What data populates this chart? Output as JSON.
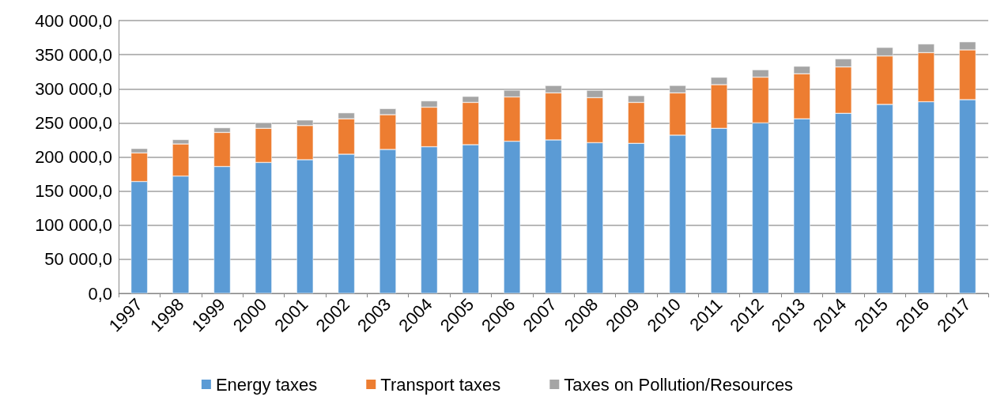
{
  "chart_data": {
    "type": "bar",
    "stacked": true,
    "categories": [
      "1997",
      "1998",
      "1999",
      "2000",
      "2001",
      "2002",
      "2003",
      "2004",
      "2005",
      "2006",
      "2007",
      "2008",
      "2009",
      "2010",
      "2011",
      "2012",
      "2013",
      "2014",
      "2015",
      "2016",
      "2017"
    ],
    "series": [
      {
        "name": "Energy taxes",
        "color": "#5b9bd5",
        "values": [
          164000,
          172000,
          186000,
          192000,
          196000,
          204000,
          211000,
          215000,
          218000,
          223000,
          225000,
          221000,
          220000,
          232000,
          242000,
          250000,
          256000,
          264000,
          277000,
          281000,
          284000
        ]
      },
      {
        "name": "Transport taxes",
        "color": "#ed7d31",
        "values": [
          42000,
          47000,
          50000,
          50000,
          50000,
          52000,
          51000,
          58000,
          62000,
          65000,
          69000,
          66000,
          60000,
          62000,
          64000,
          67000,
          66000,
          68000,
          71000,
          72000,
          73000
        ]
      },
      {
        "name": "Taxes on Pollution/Resources",
        "color": "#a5a5a5",
        "values": [
          6500,
          6600,
          6900,
          8400,
          8200,
          8800,
          9000,
          9300,
          8900,
          10000,
          10800,
          10800,
          10000,
          10900,
          10900,
          10900,
          11100,
          11900,
          12700,
          12700,
          11900
        ]
      }
    ],
    "ylim": [
      0,
      400000
    ],
    "yticks": [
      {
        "value": 0,
        "label": "0,0"
      },
      {
        "value": 50000,
        "label": "50 000,0"
      },
      {
        "value": 100000,
        "label": "100 000,0"
      },
      {
        "value": 150000,
        "label": "150 000,0"
      },
      {
        "value": 200000,
        "label": "200 000,0"
      },
      {
        "value": 250000,
        "label": "250 000,0"
      },
      {
        "value": 300000,
        "label": "300 000,0"
      },
      {
        "value": 350000,
        "label": "350 000,0"
      },
      {
        "value": 400000,
        "label": "400 000,0"
      }
    ],
    "grid": "y",
    "legend": "bottom"
  }
}
